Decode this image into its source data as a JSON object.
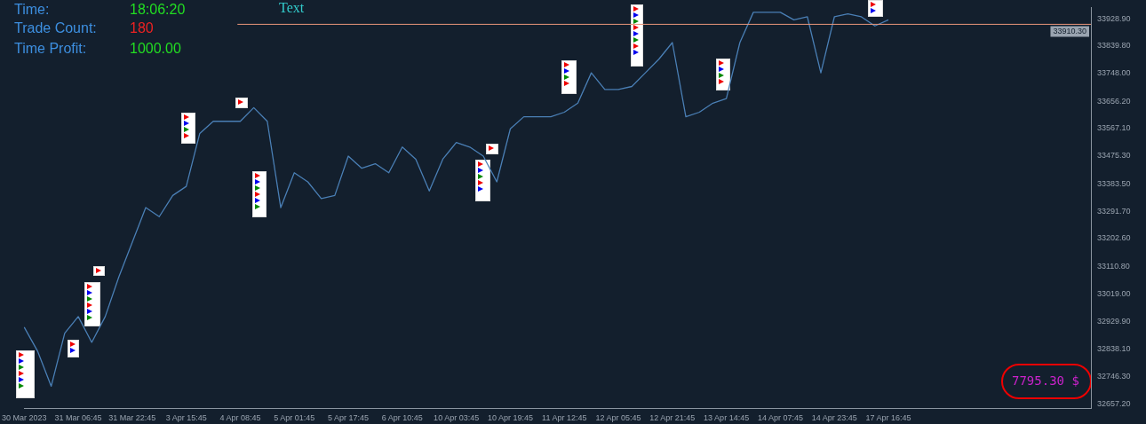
{
  "chart_data": {
    "type": "line",
    "categories": [
      "30 Mar 2023",
      null,
      null,
      null,
      "31 Mar 06:45",
      null,
      null,
      null,
      "31 Mar 22:45",
      null,
      null,
      null,
      "3 Apr 15:45",
      null,
      null,
      null,
      "4 Apr 08:45",
      null,
      null,
      null,
      "5 Apr 01:45",
      null,
      null,
      null,
      "5 Apr 17:45",
      null,
      null,
      null,
      "6 Apr 10:45",
      null,
      null,
      null,
      "10 Apr 03:45",
      null,
      null,
      null,
      "10 Apr 19:45",
      null,
      null,
      null,
      "11 Apr 12:45",
      null,
      null,
      null,
      "12 Apr 05:45",
      null,
      null,
      null,
      "12 Apr 21:45",
      null,
      null,
      null,
      "13 Apr 14:45",
      null,
      null,
      null,
      "14 Apr 07:45",
      null,
      null,
      null,
      "14 Apr 23:45",
      null,
      null,
      null,
      "17 Apr 16:45",
      null,
      null,
      null,
      null,
      null,
      null,
      null,
      null,
      null,
      null,
      null,
      null,
      null,
      null,
      null
    ],
    "series": [
      {
        "color": "#4a7fb5",
        "values": [
          32910,
          32830,
          32715,
          32890,
          32945,
          32860,
          32945,
          33075,
          33190,
          33305,
          33275,
          33345,
          33375,
          33550,
          33590,
          33590,
          33590,
          33635,
          33590,
          33305,
          33420,
          33390,
          33335,
          33345,
          33475,
          33435,
          33450,
          33420,
          33505,
          33465,
          33360,
          33465,
          33520,
          33505,
          33475,
          33390,
          33565,
          33605,
          33605,
          33605,
          33620,
          33650,
          33750,
          33695,
          33695,
          33705,
          33750,
          33795,
          33850,
          33605,
          33620,
          33650,
          33665,
          33850,
          33950,
          33950,
          33950,
          33925,
          33935,
          33750,
          33935,
          33945,
          33935,
          33905,
          33925,
          null,
          null,
          null,
          null,
          null,
          null,
          null,
          null,
          null,
          null,
          null,
          null,
          null,
          null,
          null
        ]
      }
    ],
    "ylim": [
      32643,
      33966
    ],
    "yticks": [
      {
        "value": 32657.2,
        "label": "32657.20"
      },
      {
        "value": 32746.3,
        "label": "32746.30"
      },
      {
        "value": 32838.1,
        "label": "32838.10"
      },
      {
        "value": 32929.9,
        "label": "32929.90"
      },
      {
        "value": 33019,
        "label": "33019.00"
      },
      {
        "value": 33110.8,
        "label": "33110.80"
      },
      {
        "value": 33202.6,
        "label": "33202.60"
      },
      {
        "value": 33291.7,
        "label": "33291.70"
      },
      {
        "value": 33383.5,
        "label": "33383.50"
      },
      {
        "value": 33475.3,
        "label": "33475.30"
      },
      {
        "value": 33567.1,
        "label": "33567.10"
      },
      {
        "value": 33656.2,
        "label": "33656.20"
      },
      {
        "value": 33748,
        "label": "33748.00"
      },
      {
        "value": 33839.8,
        "label": "33839.80"
      },
      {
        "value": 33928.9,
        "label": "33928.90"
      }
    ],
    "ref_lines": [
      {
        "axis": "y",
        "value": 33910.3,
        "label": "33910.30",
        "color": "#e9967a"
      }
    ],
    "annotations": [
      "Time:",
      "18:06:20",
      "Trade Count:",
      "180",
      "Time Profit:",
      "1000.00",
      "Text",
      "7795.30 $"
    ],
    "grid": false,
    "legend": false,
    "marker": "none"
  }
}
